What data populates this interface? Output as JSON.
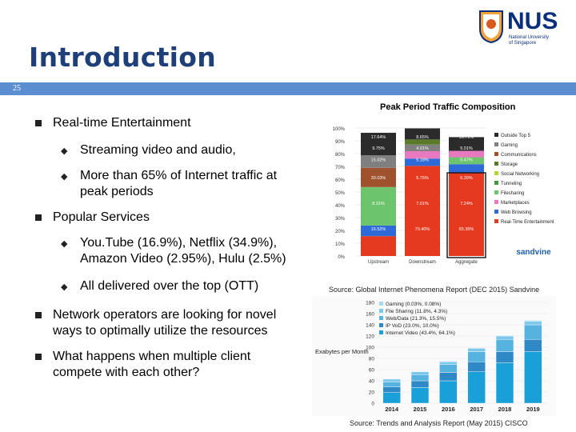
{
  "slide": {
    "title": "Introduction",
    "number": "25"
  },
  "logo": {
    "text": "NUS",
    "sub1": "National University",
    "sub2": "of Singapore"
  },
  "bullets": [
    {
      "text": "Real-time Entertainment"
    },
    {
      "text": "Streaming video and audio,"
    },
    {
      "text": "More than 65% of Internet traffic at"
    },
    {
      "text": "peak periods"
    },
    {
      "text": "Popular Services"
    },
    {
      "text": "You.Tube (16.9%), Netflix (34.9%),"
    },
    {
      "text": "Amazon Video (2.95%), Hulu (2.5%)"
    },
    {
      "text": "All delivered over the top (OTT)"
    },
    {
      "text": "Network operators are looking for novel"
    },
    {
      "text": "ways to optimally utilize the resources"
    },
    {
      "text": "What happens when multiple client"
    },
    {
      "text": "compete with each other?"
    }
  ],
  "sources": {
    "top": "Source: Global Internet Phenomena Report (DEC 2015) Sandvine",
    "bottom": "Source: Trends and Analysis Report (May 2015) CISCO"
  },
  "chart_data": [
    {
      "type": "bar",
      "title": "Peak Period Traffic Composition",
      "categories": [
        "Upstream",
        "Downstream",
        "Aggregate"
      ],
      "ylim": [
        0,
        100
      ],
      "yticks": [
        "0%",
        "10%",
        "20%",
        "30%",
        "40%",
        "50%",
        "60%",
        "70%",
        "80%",
        "90%",
        "100%"
      ],
      "legend": [
        "Outside Top 5",
        "Gaming",
        "Communications",
        "Storage",
        "Social Networking",
        "Tunneling",
        "Filesharing",
        "Marketplaces",
        "Web Browsing",
        "Real-Time Entertainment"
      ],
      "legend_colors": [
        "#2b2b2b",
        "#7f7f7f",
        "#a0522d",
        "#5a7a2a",
        "#b5d334",
        "#3f9a3f",
        "#6cc46c",
        "#e879c0",
        "#2e6bd9",
        "#e53a1f"
      ],
      "series": [
        {
          "name": "Real-Time Entertainment",
          "values": [
            15.52,
            70.4,
            65.35
          ]
        },
        {
          "name": "Web Browsing",
          "values": [
            8.31,
            5.71,
            6.39
          ]
        },
        {
          "name": "Filesharing",
          "values": [
            30.03,
            0,
            5.41
          ]
        },
        {
          "name": "Communications",
          "values": [
            15.02,
            0,
            0
          ]
        },
        {
          "name": "Marketplaces",
          "values": [
            0,
            5.76,
            5.01
          ]
        },
        {
          "name": "Gaming",
          "values": [
            9.75,
            5.18,
            0
          ]
        },
        {
          "name": "Storage",
          "values": [
            0,
            4.01,
            0
          ]
        },
        {
          "name": "Outside Top 5",
          "values": [
            17.64,
            8.65,
            10.71
          ]
        }
      ],
      "data_labels": [
        [
          "17.64%",
          "9.75%",
          "15.02%",
          "30.03%",
          "8.31%",
          "15.52%"
        ],
        [
          "8.65%",
          "4.01%",
          "5.18%",
          "5.76%",
          "7.01%",
          "70.40%"
        ],
        [
          "10.71%",
          "5.01%",
          "5.47%",
          "6.39%",
          "7.24%",
          "65.35%"
        ]
      ],
      "brand": "sandvine"
    },
    {
      "type": "bar",
      "categories": [
        "2014",
        "2015",
        "2016",
        "2017",
        "2018",
        "2019"
      ],
      "ylabel": "Exabytes per Month",
      "ylim": [
        0,
        180
      ],
      "yticks": [
        "0",
        "20",
        "40",
        "60",
        "80",
        "100",
        "120",
        "140",
        "160",
        "180"
      ],
      "legend": [
        "Gaming (0.03%, 0.08%)",
        "File Sharing (11.8%, 4.3%)",
        "Web/Data (21.3%, 15.5%)",
        "IP VoD (23.0%, 10.0%)",
        "Internet Video (43.4%, 64.1%)"
      ],
      "series": [
        {
          "name": "Internet Video",
          "values": [
            19,
            28,
            40,
            56,
            72,
            92
          ]
        },
        {
          "name": "IP VoD",
          "values": [
            10,
            12,
            15,
            18,
            20,
            22
          ]
        },
        {
          "name": "Web/Data",
          "values": [
            9,
            11,
            14,
            18,
            22,
            26
          ]
        },
        {
          "name": "File Sharing",
          "values": [
            5,
            5,
            5,
            6,
            6,
            6
          ]
        },
        {
          "name": "Gaming",
          "values": [
            1,
            1,
            1,
            1,
            1,
            2
          ]
        }
      ]
    }
  ]
}
